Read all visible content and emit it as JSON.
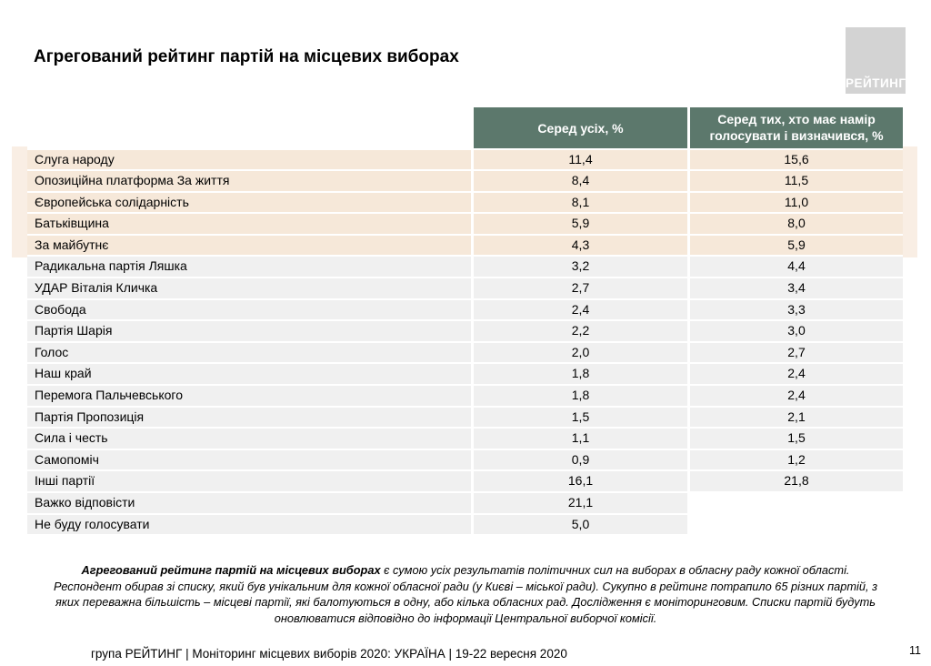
{
  "title": "Агрегований рейтинг партій на місцевих виборах",
  "logo": {
    "text": "РЕЙТИНГ"
  },
  "table": {
    "headers": {
      "col_all": "Серед усіх, %",
      "col_decided": "Серед тих, хто має намір голосувати і визначився, %"
    },
    "rows": [
      {
        "name": "Слуга народу",
        "all": "11,4",
        "decided": "15,6",
        "highlight": true
      },
      {
        "name": "Опозиційна платформа За життя",
        "all": "8,4",
        "decided": "11,5",
        "highlight": true
      },
      {
        "name": "Європейська солідарність",
        "all": "8,1",
        "decided": "11,0",
        "highlight": true
      },
      {
        "name": "Батьківщина",
        "all": "5,9",
        "decided": "8,0",
        "highlight": true
      },
      {
        "name": "За майбутнє",
        "all": "4,3",
        "decided": "5,9",
        "highlight": true
      },
      {
        "name": "Радикальна партія Ляшка",
        "all": "3,2",
        "decided": "4,4",
        "highlight": false
      },
      {
        "name": "УДАР Віталія Кличка",
        "all": "2,7",
        "decided": "3,4",
        "highlight": false
      },
      {
        "name": "Свобода",
        "all": "2,4",
        "decided": "3,3",
        "highlight": false
      },
      {
        "name": "Партія Шарія",
        "all": "2,2",
        "decided": "3,0",
        "highlight": false
      },
      {
        "name": "Голос",
        "all": "2,0",
        "decided": "2,7",
        "highlight": false
      },
      {
        "name": "Наш край",
        "all": "1,8",
        "decided": "2,4",
        "highlight": false
      },
      {
        "name": "Перемога Пальчевського",
        "all": "1,8",
        "decided": "2,4",
        "highlight": false
      },
      {
        "name": "Партія Пропозиція",
        "all": "1,5",
        "decided": "2,1",
        "highlight": false
      },
      {
        "name": "Сила і честь",
        "all": "1,1",
        "decided": "1,5",
        "highlight": false
      },
      {
        "name": "Самопоміч",
        "all": "0,9",
        "decided": "1,2",
        "highlight": false
      },
      {
        "name": "Інші партії",
        "all": "16,1",
        "decided": "21,8",
        "highlight": false
      },
      {
        "name": "Важко відповісти",
        "all": "21,1",
        "decided": null,
        "highlight": false
      },
      {
        "name": "Не буду голосувати",
        "all": "5,0",
        "decided": null,
        "highlight": false
      }
    ]
  },
  "footnote": {
    "line1_bold": "Агрегований рейтинг партій на місцевих виборах",
    "line1_rest": " є сумою усіх результатів політичних сил на виборах в обласну раду кожної області.",
    "line2": "Респондент обирав зі списку, який був унікальним для кожної обласної ради (у Києві – міської ради). Сукупно в рейтинг потрапило 65 різних партій, з",
    "line3": "яких переважна більшість – місцеві партії, які балотуються в одну, або кілька обласних рад. Дослідження є моніторинговим. Списки партій будуть",
    "line4": "оновлюватися відповідно до інформації Центральної виборчої комісії."
  },
  "footer": {
    "left": "група РЕЙТИНГ | Моніторинг місцевих виборів 2020: УКРАЇНА | 19-22 вересня 2020",
    "page": "11"
  },
  "colors": {
    "header_bg": "#5c786c",
    "highlight_row": "#f6e8d9",
    "highlight_band": "#f9eee4",
    "row_gray": "#f0f0f0",
    "logo_bg": "#d3d3d3"
  }
}
